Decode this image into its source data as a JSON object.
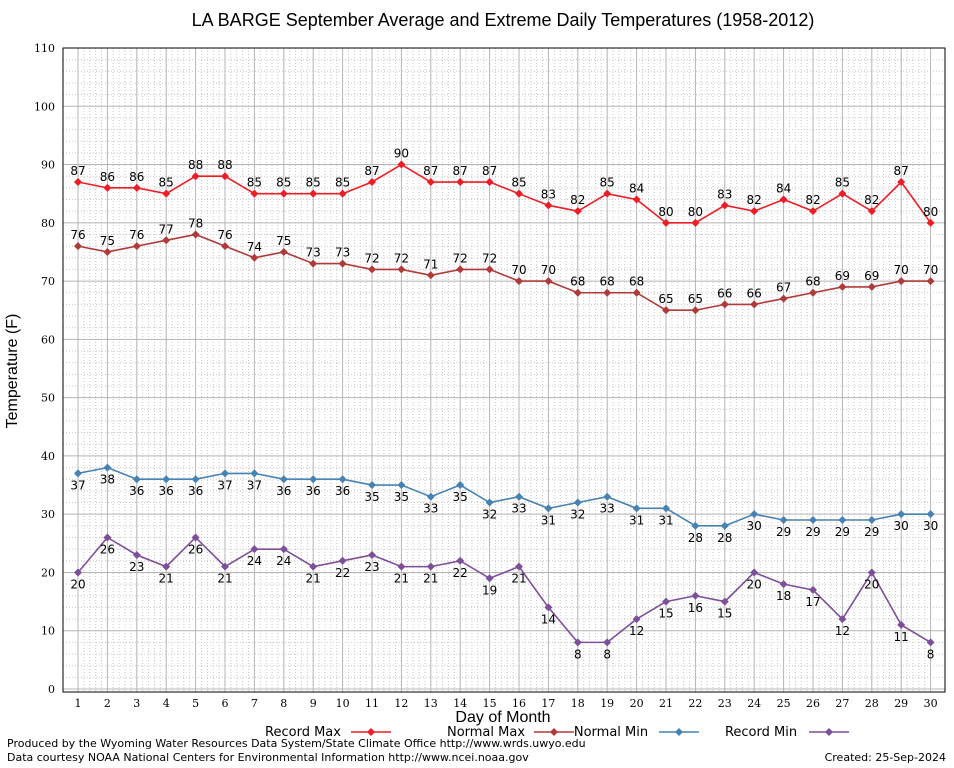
{
  "chart_data": {
    "type": "line",
    "title": "LA BARGE September Average and Extreme Daily Temperatures (1958-2012)",
    "xlabel": "Day of Month",
    "ylabel": "Temperature (F)",
    "ylim": [
      0,
      110
    ],
    "y_ticks": [
      "0",
      "10",
      "20",
      "30",
      "40",
      "50",
      "60",
      "70",
      "80",
      "90",
      "100",
      "110"
    ],
    "categories": [
      "1",
      "2",
      "3",
      "4",
      "5",
      "6",
      "7",
      "8",
      "9",
      "10",
      "11",
      "12",
      "13",
      "14",
      "15",
      "16",
      "17",
      "18",
      "19",
      "20",
      "21",
      "22",
      "23",
      "24",
      "25",
      "26",
      "27",
      "28",
      "29",
      "30"
    ],
    "grid": true,
    "legend_position": "bottom",
    "series": [
      {
        "name": "Record Max",
        "color": "#ee1c25",
        "label_position": "above",
        "values": [
          87,
          86,
          86,
          85,
          88,
          88,
          85,
          85,
          85,
          85,
          87,
          90,
          87,
          87,
          87,
          85,
          83,
          82,
          85,
          84,
          80,
          80,
          83,
          82,
          84,
          82,
          85,
          82,
          87,
          80
        ]
      },
      {
        "name": "Normal Max",
        "color": "#b03a3a",
        "label_position": "above",
        "values": [
          76,
          75,
          76,
          77,
          78,
          76,
          74,
          75,
          73,
          73,
          72,
          72,
          71,
          72,
          72,
          70,
          70,
          68,
          68,
          68,
          65,
          65,
          66,
          66,
          67,
          68,
          69,
          69,
          70,
          70
        ]
      },
      {
        "name": "Normal Min",
        "color": "#4682b4",
        "label_position": "below",
        "values": [
          37,
          38,
          36,
          36,
          36,
          37,
          37,
          36,
          36,
          36,
          35,
          35,
          33,
          35,
          32,
          33,
          31,
          32,
          33,
          31,
          31,
          28,
          28,
          30,
          29,
          29,
          29,
          29,
          30,
          30
        ]
      },
      {
        "name": "Record Min",
        "color": "#7d4f9a",
        "label_position": "below",
        "values": [
          20,
          26,
          23,
          21,
          26,
          21,
          24,
          24,
          21,
          22,
          23,
          21,
          21,
          22,
          19,
          21,
          14,
          8,
          8,
          12,
          15,
          16,
          15,
          20,
          18,
          17,
          12,
          20,
          11,
          8
        ]
      }
    ]
  },
  "footer": {
    "credit_line_1": "Produced by the Wyoming Water Resources Data System/State Climate Office http://www.wrds.uwyo.edu",
    "credit_line_2": "Data courtesy NOAA National Centers for Environmental Information http://www.ncei.noaa.gov",
    "created": "Created:  25-Sep-2024"
  }
}
